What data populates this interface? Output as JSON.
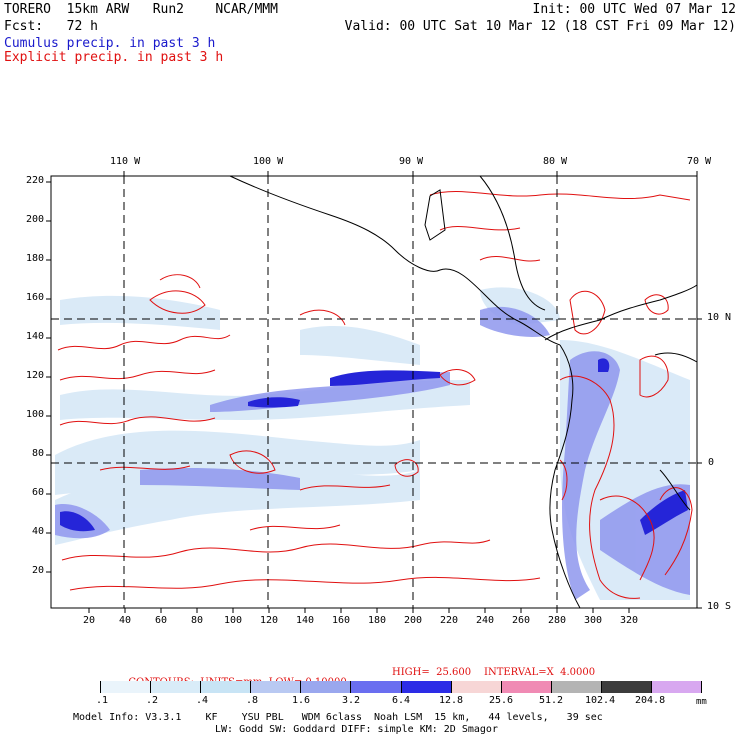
{
  "header": {
    "line1_left": "TORERO  15km ARW   Run2    NCAR/MMM",
    "line1_right": "Init: 00 UTC Wed 07 Mar 12",
    "line2_left": "Fcst:   72 h",
    "line2_right": "Valid: 00 UTC Sat 10 Mar 12 (18 CST Fri 09 Mar 12)",
    "line3": "Cumulus precip. in past 3 h",
    "line4": "Explicit precip. in past 3 h"
  },
  "colors": {
    "cumulus": "#1a1acc",
    "explicit": "#e01010",
    "coastline": "#000000"
  },
  "top_lon_labels": [
    "110 W",
    "100 W",
    "90 W",
    "80 W",
    "70 W"
  ],
  "right_lat_labels": [
    "10 N",
    "0",
    "10 S"
  ],
  "y_ticks": [
    "220",
    "200",
    "180",
    "160",
    "140",
    "120",
    "100",
    "80",
    "60",
    "40",
    "20"
  ],
  "x_ticks": [
    "20",
    "40",
    "60",
    "80",
    "100",
    "120",
    "140",
    "160",
    "180",
    "200",
    "220",
    "240",
    "260",
    "280",
    "300",
    "320"
  ],
  "contours_line": {
    "prefix": "CONTOURS:  UNITS=mm  LOW= 0.10000",
    "high": "HIGH=  25.600",
    "interval": "INTERVAL=X  4.0000"
  },
  "colorbar": {
    "labels": [
      ".1",
      ".2",
      ".4",
      ".8",
      "1.6",
      "3.2",
      "6.4",
      "12.8",
      "25.6",
      "51.2",
      "102.4",
      "204.8"
    ],
    "unit": "mm",
    "colors": [
      "#ffffff",
      "#eaf4fb",
      "#d9ecf8",
      "#c8e4f5",
      "#b9c9f2",
      "#9aa7ee",
      "#6a6ef0",
      "#2c2ce6",
      "#f7d6d6",
      "#f08ab4",
      "#b4b4b4",
      "#3c3c3c",
      "#d8a8f0"
    ]
  },
  "footer": {
    "line1": "Model Info: V3.3.1    KF    YSU PBL   WDM 6class  Noah LSM  15 km,   44 levels,   39 sec",
    "line2": "LW: Godd SW: Goddard DIFF: simple KM: 2D Smagor"
  }
}
